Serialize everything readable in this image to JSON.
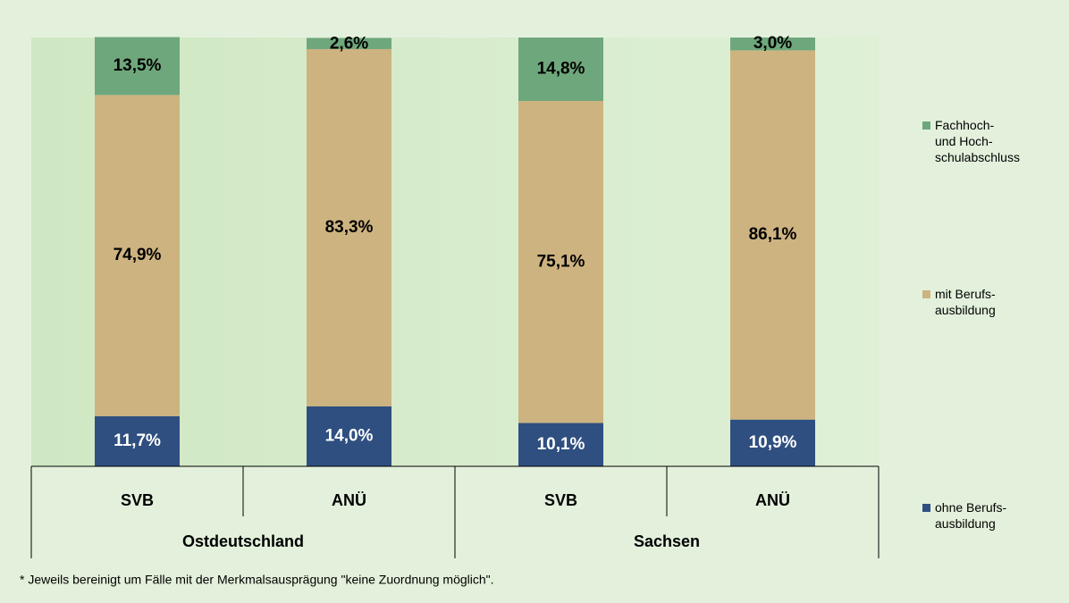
{
  "chart_data": {
    "type": "stacked_bar",
    "categories": [
      "SVB",
      "ANÜ",
      "SVB",
      "ANÜ"
    ],
    "groups": [
      "Ostdeutschland",
      "Sachsen"
    ],
    "ylim": [
      0,
      100
    ],
    "series": [
      {
        "name": "ohne Berufs-\nausbildung",
        "color": "#2f4f80",
        "values": [
          11.7,
          14.0,
          10.1,
          10.9
        ],
        "value_labels": [
          "11,7%",
          "14,0%",
          "10,1%",
          "10,9%"
        ]
      },
      {
        "name": "mit Berufs-\nausbildung",
        "color": "#cdb380",
        "values": [
          74.9,
          83.3,
          75.1,
          86.1
        ],
        "value_labels": [
          "74,9%",
          "83,3%",
          "75,1%",
          "86,1%"
        ]
      },
      {
        "name": "Fachhoch-\nund Hoch-\nschulabschluss",
        "color": "#6fa77c",
        "values": [
          13.5,
          2.6,
          14.8,
          3.0
        ],
        "value_labels": [
          "13,5%",
          "2,6%",
          "14,8%",
          "3,0%"
        ]
      }
    ],
    "footnote": "* Jeweils bereinigt um Fälle mit der Merkmalsausprägung \"keine Zuordnung möglich\"."
  }
}
